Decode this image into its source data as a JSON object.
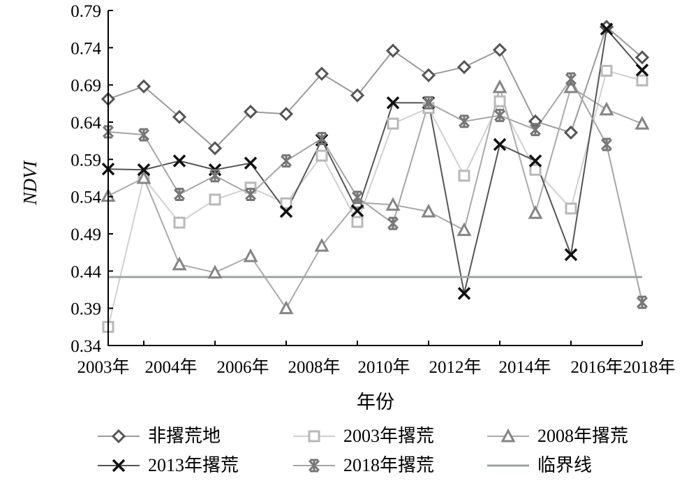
{
  "chart_data": {
    "type": "line",
    "title": "",
    "xlabel": "年份",
    "ylabel": "NDVI",
    "ylim": [
      0.34,
      0.79
    ],
    "yticks": [
      "0.34",
      "0.39",
      "0.44",
      "0.49",
      "0.54",
      "0.59",
      "0.64",
      "0.69",
      "0.74",
      "0.79"
    ],
    "x_tick_labels": [
      "2003年",
      "2004年",
      "2006年",
      "2008年",
      "2010年",
      "2012年",
      "2014年",
      "2016年",
      "2018年"
    ],
    "point_count": 16,
    "grid": false,
    "legend_placement": "bottom",
    "series": [
      {
        "name": "非撂荒地",
        "marker": "diamond",
        "color": "#555555",
        "line_color": "#9a9a9a",
        "values": [
          0.671,
          0.688,
          0.647,
          0.605,
          0.654,
          0.651,
          0.705,
          0.676,
          0.736,
          0.703,
          0.714,
          0.737,
          0.641,
          0.626,
          0.768,
          0.727
        ]
      },
      {
        "name": "2003年撂荒",
        "marker": "square",
        "color": "#b8b8b8",
        "line_color": "#d0d0d0",
        "values": [
          0.365,
          0.565,
          0.505,
          0.536,
          0.552,
          0.531,
          0.595,
          0.506,
          0.638,
          0.659,
          0.568,
          0.668,
          0.576,
          0.524,
          0.709,
          0.696
        ]
      },
      {
        "name": "2008年撂荒",
        "marker": "triangle",
        "color": "#858585",
        "line_color": "#aaaaaa",
        "values": [
          0.541,
          0.565,
          0.449,
          0.438,
          0.46,
          0.39,
          0.474,
          0.532,
          0.529,
          0.52,
          0.495,
          0.687,
          0.518,
          0.687,
          0.657,
          0.638
        ]
      },
      {
        "name": "2013年撂荒",
        "marker": "x",
        "color": "#111111",
        "line_color": "#555555",
        "values": [
          0.577,
          0.576,
          0.588,
          0.576,
          0.585,
          0.52,
          0.616,
          0.521,
          0.666,
          0.666,
          0.41,
          0.61,
          0.588,
          0.462,
          0.765,
          0.71
        ]
      },
      {
        "name": "2018年撂荒",
        "marker": "asterisk",
        "color": "#777777",
        "line_color": "#a5a5a5",
        "values": [
          0.627,
          0.623,
          0.543,
          0.568,
          0.543,
          0.588,
          0.618,
          0.539,
          0.504,
          0.666,
          0.641,
          0.649,
          0.63,
          0.698,
          0.61,
          0.398
        ]
      },
      {
        "name": "临界线",
        "marker": "none",
        "color": "#9aa3a3",
        "line_color": "#9aa3a3",
        "threshold": 0.432
      }
    ]
  }
}
